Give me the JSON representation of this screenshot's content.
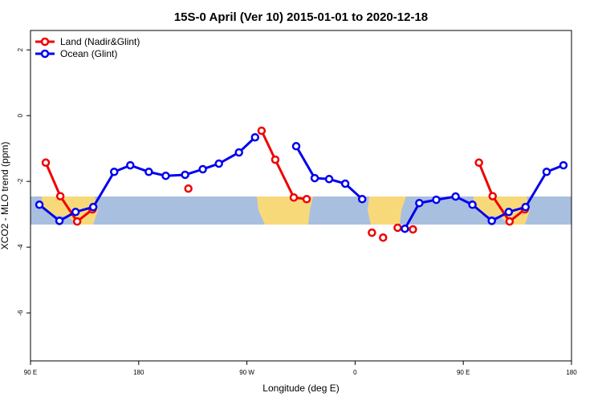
{
  "chart_data": {
    "type": "line",
    "title": "15S-0 April (Ver 10)   2015-01-01 to 2020-12-18",
    "x_label": "Longitude (deg E)",
    "y_label": "XCO2 - MLO trend (ppm)",
    "xlim": [
      90,
      540
    ],
    "ylim": [
      -7.46,
      2.59
    ],
    "xticks": [
      {
        "value": 90,
        "label": "90 E"
      },
      180,
      {
        "value": 270,
        "label": "90 W"
      },
      {
        "value": 360,
        "label": "0"
      },
      {
        "value": 450,
        "label": "90 E"
      },
      {
        "value": 540,
        "label": "180"
      }
    ],
    "yticks": [
      -6,
      -4,
      -2,
      0,
      2
    ],
    "legend": "top-left",
    "series": [
      {
        "name": "Land (Nadir&Glint)",
        "color": "#ee0000",
        "x": [
          102.7,
          114.8,
          128.8,
          141.6,
          null,
          221.3,
          null,
          282.2,
          293.6,
          309.0,
          319.7,
          null,
          374.0,
          null,
          383.3,
          null,
          395.4,
          null,
          408.1,
          null,
          463.0,
          474.4,
          488.5,
          501.2
        ],
        "values": [
          -1.43,
          -2.45,
          -3.22,
          -2.85,
          null,
          -2.22,
          null,
          -0.46,
          -1.34,
          -2.49,
          -2.54,
          null,
          -3.56,
          null,
          -3.71,
          null,
          -3.41,
          null,
          -3.46,
          null,
          -1.43,
          -2.45,
          -3.22,
          -2.85
        ]
      },
      {
        "name": "Ocean (Glint)",
        "color": "#0000ee",
        "x": [
          97.4,
          114.1,
          127.5,
          142.2,
          159.6,
          173.0,
          188.4,
          202.5,
          218.6,
          233.3,
          246.7,
          263.4,
          276.8,
          null,
          311.0,
          326.4,
          338.4,
          351.8,
          365.9,
          null,
          401.4,
          413.4,
          427.5,
          443.6,
          457.6,
          473.7,
          487.8,
          501.8,
          519.3,
          533.3
        ],
        "values": [
          -2.71,
          -3.2,
          -2.93,
          -2.78,
          -1.71,
          -1.51,
          -1.71,
          -1.83,
          -1.8,
          -1.63,
          -1.46,
          -1.12,
          -0.66,
          null,
          -0.93,
          -1.9,
          -1.93,
          -2.07,
          -2.54,
          null,
          -3.44,
          -2.66,
          -2.56,
          -2.46,
          -2.71,
          -3.2,
          -2.93,
          -2.78,
          -1.71,
          -1.51
        ]
      }
    ]
  }
}
